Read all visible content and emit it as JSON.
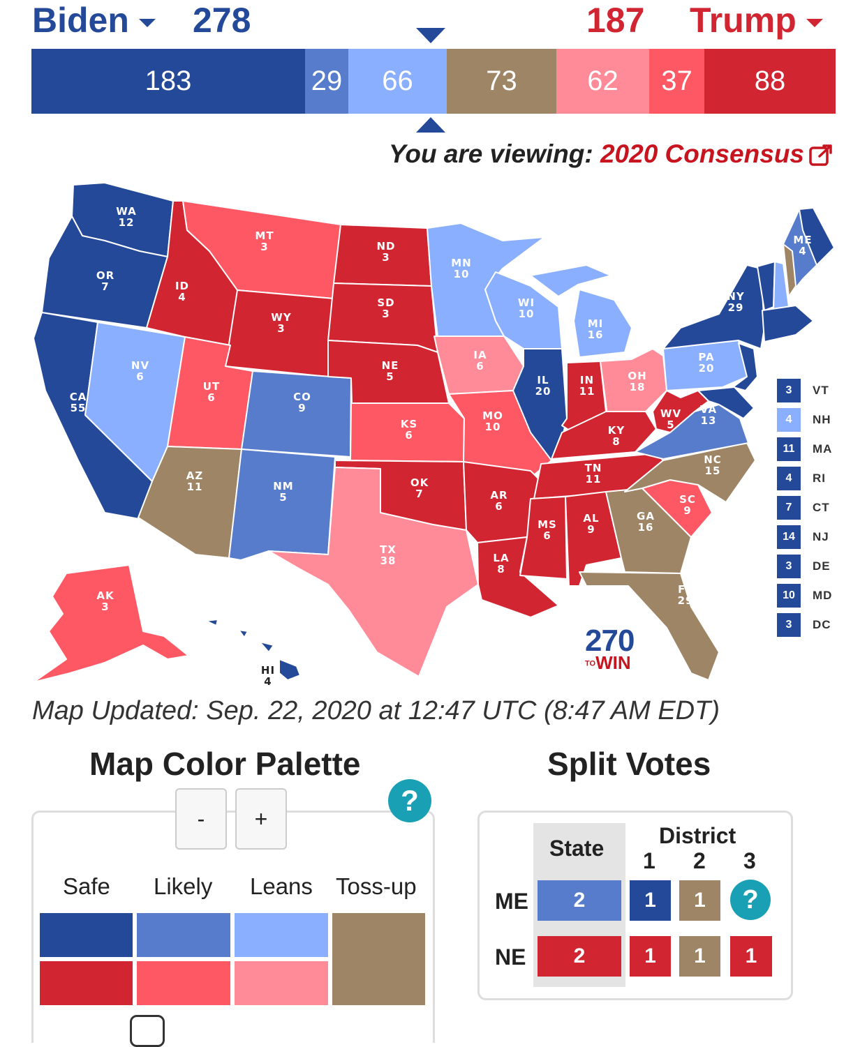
{
  "header": {
    "dem_candidate": "Biden",
    "dem_electoral_votes": "278",
    "rep_electoral_votes": "187",
    "rep_candidate": "Trump"
  },
  "bar": [
    {
      "id": "safe-dem",
      "value": "183",
      "color": "#244999",
      "share": 183
    },
    {
      "id": "likely-dem",
      "value": "29",
      "color": "#577ccc",
      "share": 29
    },
    {
      "id": "leans-dem",
      "value": "66",
      "color": "#8aafff",
      "share": 66
    },
    {
      "id": "tossup",
      "value": "73",
      "color": "#9d8565",
      "share": 73
    },
    {
      "id": "leans-rep",
      "value": "62",
      "color": "#ff8b98",
      "share": 62
    },
    {
      "id": "likely-rep",
      "value": "37",
      "color": "#ff5865",
      "share": 37
    },
    {
      "id": "safe-rep",
      "value": "88",
      "color": "#d22532",
      "share": 88
    }
  ],
  "viewing": {
    "prefix": "You are viewing:",
    "map_name": "2020 Consensus"
  },
  "states": [
    {
      "abbr": "WA",
      "ev": "12"
    },
    {
      "abbr": "OR",
      "ev": "7"
    },
    {
      "abbr": "CA",
      "ev": "55"
    },
    {
      "abbr": "NV",
      "ev": "6"
    },
    {
      "abbr": "ID",
      "ev": "4"
    },
    {
      "abbr": "MT",
      "ev": "3"
    },
    {
      "abbr": "WY",
      "ev": "3"
    },
    {
      "abbr": "UT",
      "ev": "6"
    },
    {
      "abbr": "AZ",
      "ev": "11"
    },
    {
      "abbr": "CO",
      "ev": "9"
    },
    {
      "abbr": "NM",
      "ev": "5"
    },
    {
      "abbr": "ND",
      "ev": "3"
    },
    {
      "abbr": "SD",
      "ev": "3"
    },
    {
      "abbr": "NE",
      "ev": "5"
    },
    {
      "abbr": "KS",
      "ev": "6"
    },
    {
      "abbr": "OK",
      "ev": "7"
    },
    {
      "abbr": "TX",
      "ev": "38"
    },
    {
      "abbr": "MN",
      "ev": "10"
    },
    {
      "abbr": "IA",
      "ev": "6"
    },
    {
      "abbr": "MO",
      "ev": "10"
    },
    {
      "abbr": "AR",
      "ev": "6"
    },
    {
      "abbr": "LA",
      "ev": "8"
    },
    {
      "abbr": "WI",
      "ev": "10"
    },
    {
      "abbr": "IL",
      "ev": "20"
    },
    {
      "abbr": "MI",
      "ev": "16"
    },
    {
      "abbr": "IN",
      "ev": "11"
    },
    {
      "abbr": "OH",
      "ev": "18"
    },
    {
      "abbr": "KY",
      "ev": "8"
    },
    {
      "abbr": "TN",
      "ev": "11"
    },
    {
      "abbr": "MS",
      "ev": "6"
    },
    {
      "abbr": "AL",
      "ev": "9"
    },
    {
      "abbr": "GA",
      "ev": "16"
    },
    {
      "abbr": "FL",
      "ev": "29"
    },
    {
      "abbr": "SC",
      "ev": "9"
    },
    {
      "abbr": "NC",
      "ev": "15"
    },
    {
      "abbr": "VA",
      "ev": "13"
    },
    {
      "abbr": "WV",
      "ev": "5"
    },
    {
      "abbr": "PA",
      "ev": "20"
    },
    {
      "abbr": "NY",
      "ev": "29"
    },
    {
      "abbr": "ME",
      "ev": "4"
    },
    {
      "abbr": "AK",
      "ev": "3"
    },
    {
      "abbr": "HI",
      "ev": "4"
    }
  ],
  "small_states": [
    {
      "abbr": "VT",
      "ev": "3",
      "color": "#244999"
    },
    {
      "abbr": "NH",
      "ev": "4",
      "color": "#8aafff"
    },
    {
      "abbr": "MA",
      "ev": "11",
      "color": "#244999"
    },
    {
      "abbr": "RI",
      "ev": "4",
      "color": "#244999"
    },
    {
      "abbr": "CT",
      "ev": "7",
      "color": "#244999"
    },
    {
      "abbr": "NJ",
      "ev": "14",
      "color": "#244999"
    },
    {
      "abbr": "DE",
      "ev": "3",
      "color": "#244999"
    },
    {
      "abbr": "MD",
      "ev": "10",
      "color": "#244999"
    },
    {
      "abbr": "DC",
      "ev": "3",
      "color": "#244999"
    }
  ],
  "logo": {
    "number": "270",
    "to": "TO",
    "win": "WIN"
  },
  "updated": "Map Updated: Sep. 22, 2020 at 12:47 UTC (8:47 AM EDT)",
  "palette": {
    "title": "Map Color Palette",
    "minus": "-",
    "plus": "+",
    "help": "?",
    "labels": [
      "Safe",
      "Likely",
      "Leans",
      "Toss-up"
    ]
  },
  "split": {
    "title": "Split Votes",
    "state_header": "State",
    "district_header": "District",
    "districts": [
      "1",
      "2",
      "3"
    ],
    "me": {
      "label": "ME",
      "state": "2",
      "d1": "1",
      "d2": "1",
      "d3": "?"
    },
    "ne": {
      "label": "NE",
      "state": "2",
      "d1": "1",
      "d2": "1",
      "d3": "1"
    }
  }
}
